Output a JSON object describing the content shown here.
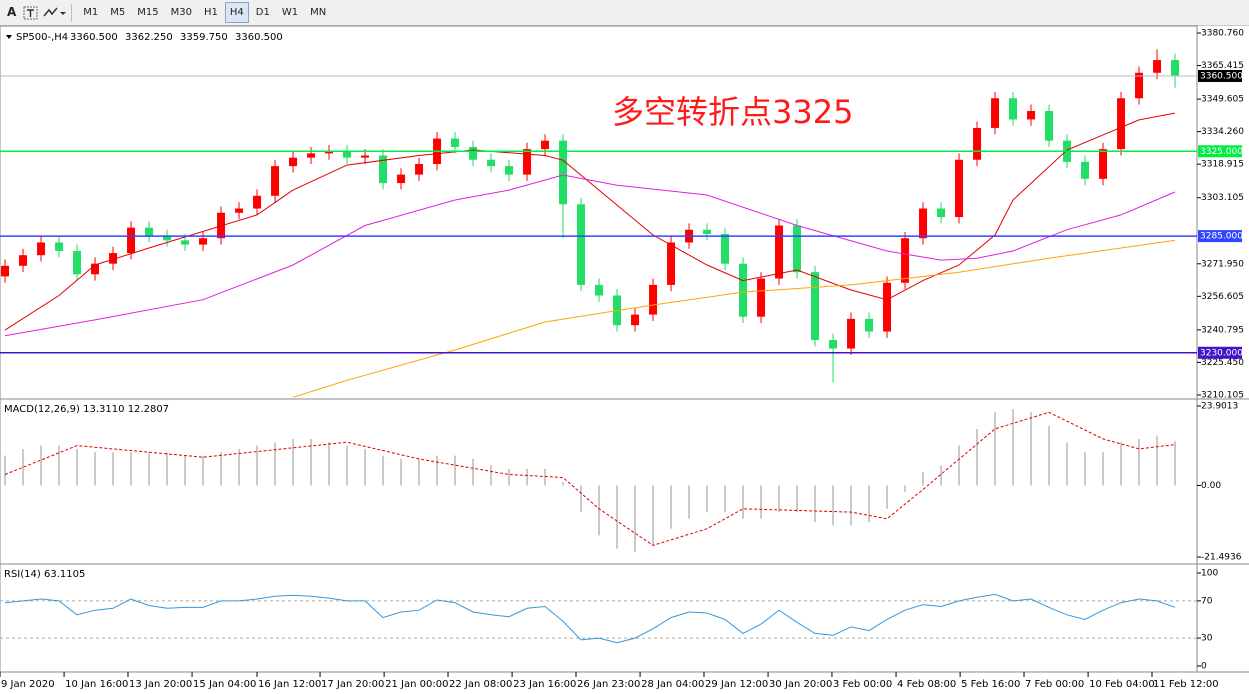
{
  "toolbar": {
    "font_button": "A",
    "timeframes": [
      "M1",
      "M5",
      "M15",
      "M30",
      "H1",
      "H4",
      "D1",
      "W1",
      "MN"
    ],
    "active": "H4"
  },
  "chart_data": [
    {
      "type": "candlestick",
      "title": "SP500-,H4",
      "header_values": [
        {
          "value": 3360.5,
          "label": "3360.500"
        },
        {
          "value": 3362.25,
          "label": "3362.250"
        },
        {
          "value": 3359.75,
          "label": "3359.750"
        },
        {
          "value": 3360.5,
          "label": "3360.500"
        }
      ],
      "annotation": "多空转折点3325",
      "xlim": [
        -0.28,
        66.22
      ],
      "ylim": [
        3208.67,
        3384.06
      ],
      "yticks": [
        {
          "value": 3380.76,
          "label": "3380.760"
        },
        {
          "value": 3365.415,
          "label": "3365.415"
        },
        {
          "value": 3349.605,
          "label": "3349.605"
        },
        {
          "value": 3334.26,
          "label": "3334.260"
        },
        {
          "value": 3318.915,
          "label": "3318.915"
        },
        {
          "value": 3303.105,
          "label": "3303.105"
        },
        {
          "value": 3271.95,
          "label": "3271.950"
        },
        {
          "value": 3256.605,
          "label": "3256.605"
        },
        {
          "value": 3240.795,
          "label": "3240.795"
        },
        {
          "value": 3225.45,
          "label": "3225.450"
        },
        {
          "value": 3210.105,
          "label": "3210.105"
        }
      ],
      "up_color": "#ff0000",
      "down_color": "#22dd66",
      "open": [
        3266,
        3271,
        3276,
        3282,
        3278,
        3267,
        3272,
        3277,
        3289,
        3285,
        3283,
        3281,
        3284,
        3296,
        3298,
        3304,
        3318,
        3322,
        3324,
        3325,
        3322,
        3323,
        3310,
        3314,
        3319,
        3331,
        3327,
        3321,
        3318,
        3314,
        3326,
        3330,
        3300,
        3262,
        3257,
        3243,
        3248,
        3262,
        3282,
        3288,
        3286,
        3272,
        3247,
        3265,
        3290,
        3268,
        3236,
        3232,
        3246,
        3240,
        3263,
        3284,
        3298,
        3294,
        3321,
        3336,
        3350,
        3340,
        3344,
        3330,
        3320,
        3312,
        3326,
        3350,
        3362,
        3368
      ],
      "high": [
        3274,
        3279,
        3285,
        3285,
        3281,
        3275,
        3280,
        3292,
        3292,
        3288,
        3286,
        3287,
        3299,
        3301,
        3307,
        3321,
        3325,
        3327,
        3328,
        3328,
        3326,
        3326,
        3317,
        3322,
        3334,
        3334,
        3330,
        3324,
        3321,
        3329,
        3333,
        3333,
        3303,
        3265,
        3260,
        3251,
        3265,
        3285,
        3291,
        3291,
        3289,
        3275,
        3268,
        3293,
        3293,
        3271,
        3239,
        3249,
        3249,
        3266,
        3287,
        3301,
        3301,
        3324,
        3339,
        3353,
        3353,
        3347,
        3347,
        3333,
        3323,
        3329,
        3353,
        3365,
        3373,
        3371
      ],
      "low": [
        3263,
        3268,
        3273,
        3275,
        3264,
        3264,
        3269,
        3274,
        3282,
        3280,
        3278,
        3278,
        3281,
        3293,
        3295,
        3301,
        3315,
        3319,
        3321,
        3319,
        3319,
        3307,
        3307,
        3311,
        3316,
        3324,
        3318,
        3315,
        3311,
        3311,
        3323,
        3284,
        3259,
        3254,
        3240,
        3240,
        3245,
        3259,
        3279,
        3283,
        3269,
        3244,
        3244,
        3262,
        3265,
        3233,
        3216,
        3229,
        3237,
        3237,
        3260,
        3281,
        3291,
        3291,
        3318,
        3333,
        3337,
        3337,
        3327,
        3317,
        3309,
        3309,
        3323,
        3347,
        3359,
        3355
      ],
      "close": [
        3271,
        3276,
        3282,
        3278,
        3267,
        3272,
        3277,
        3289,
        3285,
        3283,
        3281,
        3284,
        3296,
        3298,
        3304,
        3318,
        3322,
        3324,
        3325,
        3322,
        3323,
        3310,
        3314,
        3319,
        3331,
        3327,
        3321,
        3318,
        3314,
        3326,
        3330,
        3300,
        3262,
        3257,
        3243,
        3248,
        3262,
        3282,
        3288,
        3286,
        3272,
        3247,
        3265,
        3290,
        3268,
        3236,
        3232,
        3246,
        3240,
        3263,
        3284,
        3298,
        3294,
        3321,
        3336,
        3350,
        3340,
        3344,
        3330,
        3320,
        3312,
        3326,
        3350,
        3362,
        3368,
        3360.5
      ],
      "lines": [
        {
          "color": "#e00000",
          "x": [
            0,
            3,
            5,
            8,
            14,
            16,
            19,
            23,
            26,
            30,
            31,
            33,
            36,
            39,
            41,
            44,
            47,
            49,
            51,
            53,
            55,
            56,
            59,
            61,
            63,
            65
          ],
          "values": [
            3240.7,
            3257,
            3271.4,
            3279.4,
            3295,
            3306.7,
            3318.5,
            3323,
            3325.6,
            3323,
            3320.8,
            3306.7,
            3285.5,
            3271.4,
            3264,
            3269,
            3259.6,
            3255,
            3264,
            3271.4,
            3285.5,
            3302,
            3325.6,
            3332.7,
            3339.8,
            3343
          ]
        },
        {
          "color": "#e020e0",
          "x": [
            0,
            5,
            11,
            16,
            20,
            25,
            28,
            31,
            34,
            39,
            44,
            49,
            52,
            54,
            56,
            59,
            62,
            65
          ],
          "values": [
            3238,
            3245.5,
            3255,
            3271.4,
            3290,
            3302,
            3306.7,
            3313.8,
            3309,
            3304.4,
            3290,
            3278,
            3273.7,
            3274.6,
            3278,
            3288,
            3295,
            3305.8
          ]
        },
        {
          "color": "#ffa500",
          "x": [
            16,
            19,
            25,
            30,
            36,
            41,
            47,
            53,
            58,
            65
          ],
          "values": [
            3209,
            3217,
            3231.3,
            3244.5,
            3252.5,
            3258.6,
            3262,
            3268,
            3274.6,
            3283
          ]
        }
      ],
      "hlines": [
        {
          "value": 3325,
          "label": "3325.000",
          "color": "#00ee44"
        },
        {
          "value": 3285,
          "label": "3285.000",
          "color": "#3344ff"
        },
        {
          "value": 3230,
          "label": "3230.000",
          "color": "#4411cc"
        }
      ],
      "current": {
        "value": 3360.5,
        "label": "3360.500"
      }
    },
    {
      "type": "macd",
      "title": "MACD(12,26,9)",
      "main_value": {
        "value": 13.311,
        "label": "13.3110"
      },
      "signal_value": {
        "value": 12.2807,
        "label": "12.2807"
      },
      "xlim": [
        -0.28,
        66.22
      ],
      "ylim": [
        -23.3,
        25.7
      ],
      "yticks": [
        {
          "value": 23.9013,
          "label": "23.9013"
        },
        {
          "value": 0,
          "label": "0.00"
        },
        {
          "value": -21.4936,
          "label": "-21.4936"
        }
      ],
      "histogram_color": "#b8b8b8",
      "values": [
        9,
        11,
        12,
        12,
        11,
        10,
        10,
        10,
        10,
        10,
        9,
        9,
        10,
        11,
        12,
        13,
        14,
        14,
        13,
        12,
        11,
        9,
        8,
        8,
        9,
        9,
        8,
        6,
        5,
        5,
        5,
        1,
        -8,
        -15,
        -19,
        -20,
        -18,
        -13,
        -10,
        -8,
        -8,
        -10,
        -10,
        -8,
        -8,
        -11,
        -12,
        -12,
        -11,
        -7,
        -2,
        4,
        6,
        12,
        17,
        22,
        23,
        22,
        18,
        13,
        10,
        10,
        13,
        14,
        15,
        13.311
      ],
      "signal": {
        "color": "#dd0000",
        "x": [
          0,
          4,
          11,
          19,
          23,
          28,
          31,
          33,
          36,
          39,
          41,
          47,
          49,
          51,
          55,
          58,
          61,
          63,
          65
        ],
        "values": [
          3.3,
          12,
          8.5,
          13,
          8,
          3.3,
          2.4,
          -7,
          -18,
          -13,
          -7,
          -8,
          -10,
          -1.2,
          17,
          22,
          14,
          11,
          12.2807
        ]
      }
    },
    {
      "type": "rsi",
      "title": "RSI(14)",
      "main_value": {
        "value": 63.1105,
        "label": "63.1105"
      },
      "xlim": [
        -0.28,
        66.22
      ],
      "ylim": [
        -6.5,
        108.6
      ],
      "yticks": [
        100,
        70,
        30,
        0
      ],
      "levels": [
        70,
        30
      ],
      "color": "#3399dd",
      "values": [
        68,
        70,
        72,
        70,
        55,
        60,
        62,
        72,
        65,
        62,
        63,
        63,
        70,
        70,
        72,
        75,
        76,
        75,
        73,
        70,
        70,
        52,
        58,
        60,
        71,
        68,
        58,
        55,
        53,
        62,
        64,
        48,
        28,
        30,
        25,
        30,
        40,
        52,
        58,
        57,
        50,
        35,
        45,
        60,
        47,
        35,
        33,
        42,
        38,
        50,
        60,
        66,
        64,
        70,
        74,
        77,
        70,
        72,
        63,
        55,
        50,
        60,
        68,
        72,
        70,
        63.1105
      ],
      "xticks": [
        {
          "value": -0.28,
          "label": "9 Jan 2020"
        },
        {
          "value": 3.28,
          "label": "10 Jan 16:00"
        },
        {
          "value": 6.83,
          "label": "13 Jan 20:00"
        },
        {
          "value": 10.39,
          "label": "15 Jan 04:00"
        },
        {
          "value": 14,
          "label": "16 Jan 12:00"
        },
        {
          "value": 17.5,
          "label": "17 Jan 20:00"
        },
        {
          "value": 21.06,
          "label": "21 Jan 00:00"
        },
        {
          "value": 24.61,
          "label": "22 Jan 08:00"
        },
        {
          "value": 28.17,
          "label": "23 Jan 16:00"
        },
        {
          "value": 31.72,
          "label": "26 Jan 23:00"
        },
        {
          "value": 35.28,
          "label": "28 Jan 04:00"
        },
        {
          "value": 38.83,
          "label": "29 Jan 12:00"
        },
        {
          "value": 42.39,
          "label": "30 Jan 20:00"
        },
        {
          "value": 45.94,
          "label": "3 Feb 00:00"
        },
        {
          "value": 49.5,
          "label": "4 Feb 08:00"
        },
        {
          "value": 53.06,
          "label": "5 Feb 16:00"
        },
        {
          "value": 56.61,
          "label": "7 Feb 00:00"
        },
        {
          "value": 60.17,
          "label": "10 Feb 04:00"
        },
        {
          "value": 63.72,
          "label": "11 Feb 12:00"
        }
      ]
    }
  ]
}
